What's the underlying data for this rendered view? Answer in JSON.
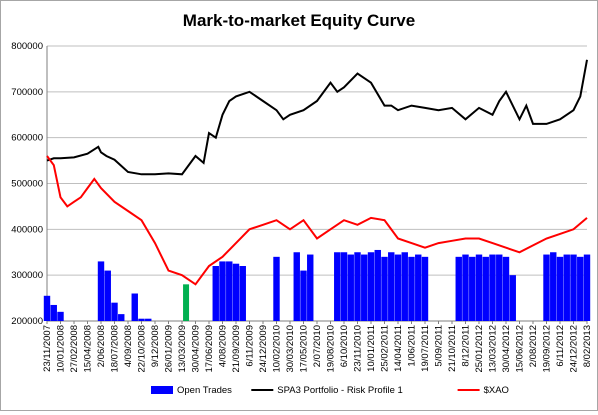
{
  "chart_data": {
    "type": "line",
    "title": "Mark-to-market Equity Curve",
    "xlabel": "",
    "ylabel": "",
    "ylim": [
      200000,
      800000
    ],
    "y_ticks": [
      "200000",
      "300000",
      "400000",
      "500000",
      "600000",
      "700000",
      "800000"
    ],
    "y_tick_values": [
      200000,
      300000,
      400000,
      500000,
      600000,
      700000,
      800000
    ],
    "grid": "horizontal",
    "legend_position": "bottom",
    "x_tick_labels": [
      "23/11/2007",
      "10/01/2008",
      "27/02/2008",
      "15/04/2008",
      "2/06/2008",
      "18/07/2008",
      "4/09/2008",
      "22/10/2008",
      "9/12/2008",
      "26/01/2009",
      "13/03/2009",
      "30/04/2009",
      "17/06/2009",
      "4/08/2009",
      "21/09/2009",
      "6/11/2009",
      "24/12/2009",
      "10/02/2010",
      "30/03/2010",
      "17/05/2010",
      "2/07/2010",
      "19/08/2010",
      "6/10/2010",
      "23/11/2010",
      "10/01/2011",
      "25/02/2011",
      "14/04/2011",
      "1/06/2011",
      "19/07/2011",
      "5/09/2011",
      "21/10/2011",
      "8/12/2011",
      "25/01/2012",
      "13/03/2012",
      "30/04/2012",
      "15/06/2012",
      "2/08/2012",
      "19/09/2012",
      "6/11/2012",
      "24/12/2012",
      "8/02/2013"
    ],
    "series": [
      {
        "name": "Open Trades",
        "kind": "bar",
        "color": "#0000ff",
        "note_marker_color": "#00b050",
        "x_index": [
          0,
          0.5,
          1,
          1.5,
          2,
          2.5,
          3,
          3.5,
          4,
          4.5,
          5,
          5.5,
          6,
          6.5,
          7,
          7.5,
          8,
          8.5,
          9,
          9.5,
          10,
          10.5,
          11,
          11.5,
          12,
          12.5,
          13,
          13.5,
          14,
          14.5,
          15,
          15.5,
          16,
          16.5,
          17,
          17.5,
          18,
          18.5,
          19,
          19.5,
          20,
          20.5,
          21,
          21.5,
          22,
          22.5,
          23,
          23.5,
          24,
          24.5,
          25,
          25.5,
          26,
          26.5,
          27,
          27.5,
          28,
          28.5,
          29,
          29.5,
          30,
          30.5,
          31,
          31.5,
          32,
          32.5,
          33,
          33.5,
          34,
          34.5,
          35,
          35.5,
          36,
          36.5,
          37,
          37.5,
          38,
          38.5,
          39,
          39.5,
          40
        ],
        "values": [
          255000,
          235000,
          220000,
          200000,
          200000,
          200000,
          200000,
          200000,
          330000,
          310000,
          240000,
          215000,
          200000,
          260000,
          205000,
          205000,
          200000,
          200000,
          200000,
          200000,
          200000,
          200000,
          200000,
          200000,
          200000,
          320000,
          330000,
          330000,
          325000,
          320000,
          200000,
          200000,
          200000,
          200000,
          340000,
          200000,
          200000,
          350000,
          310000,
          345000,
          200000,
          200000,
          200000,
          350000,
          350000,
          345000,
          350000,
          345000,
          350000,
          355000,
          340000,
          350000,
          345000,
          350000,
          340000,
          345000,
          340000,
          200000,
          200000,
          200000,
          200000,
          340000,
          345000,
          340000,
          345000,
          340000,
          345000,
          345000,
          340000,
          300000,
          200000,
          200000,
          200000,
          200000,
          345000,
          350000,
          340000,
          345000,
          345000,
          340000,
          345000
        ]
      },
      {
        "name": "SPA3 Portfolio - Risk Profile 1",
        "kind": "line",
        "color": "#000000",
        "x_index": [
          0,
          0.5,
          1,
          2,
          3,
          3.8,
          4,
          4.4,
          5,
          6,
          7,
          8,
          9,
          10,
          11,
          11.6,
          12,
          12.5,
          13,
          13.5,
          14,
          15,
          16,
          17,
          17.5,
          18,
          19,
          20,
          21,
          21.5,
          22,
          23,
          24,
          25,
          25.5,
          26,
          27,
          28,
          29,
          30,
          31,
          32,
          33,
          33.5,
          34,
          35,
          35.5,
          36,
          37,
          38,
          39,
          39.5,
          40
        ],
        "values": [
          550000,
          555000,
          555000,
          557000,
          565000,
          580000,
          568000,
          560000,
          552000,
          525000,
          520000,
          520000,
          522000,
          520000,
          560000,
          545000,
          610000,
          600000,
          650000,
          680000,
          690000,
          700000,
          680000,
          660000,
          640000,
          650000,
          660000,
          680000,
          720000,
          700000,
          710000,
          740000,
          720000,
          670000,
          670000,
          660000,
          670000,
          665000,
          660000,
          665000,
          640000,
          665000,
          650000,
          680000,
          700000,
          640000,
          670000,
          630000,
          630000,
          640000,
          660000,
          690000,
          770000
        ]
      },
      {
        "name": "$XAO",
        "kind": "line",
        "color": "#ff0000",
        "x_index": [
          0,
          0.5,
          1,
          1.5,
          2,
          2.5,
          3,
          3.5,
          4,
          5,
          6,
          7,
          8,
          9,
          10,
          11,
          12,
          13,
          14,
          15,
          16,
          17,
          18,
          19,
          20,
          21,
          22,
          23,
          24,
          25,
          26,
          27,
          28,
          29,
          30,
          31,
          32,
          33,
          34,
          35,
          36,
          37,
          38,
          39,
          40
        ],
        "values": [
          560000,
          540000,
          470000,
          450000,
          460000,
          470000,
          490000,
          510000,
          490000,
          460000,
          440000,
          420000,
          370000,
          310000,
          300000,
          280000,
          320000,
          340000,
          370000,
          400000,
          410000,
          420000,
          400000,
          420000,
          380000,
          400000,
          420000,
          410000,
          425000,
          420000,
          380000,
          370000,
          360000,
          370000,
          375000,
          380000,
          380000,
          370000,
          360000,
          350000,
          365000,
          380000,
          390000,
          400000,
          425000
        ]
      }
    ]
  }
}
